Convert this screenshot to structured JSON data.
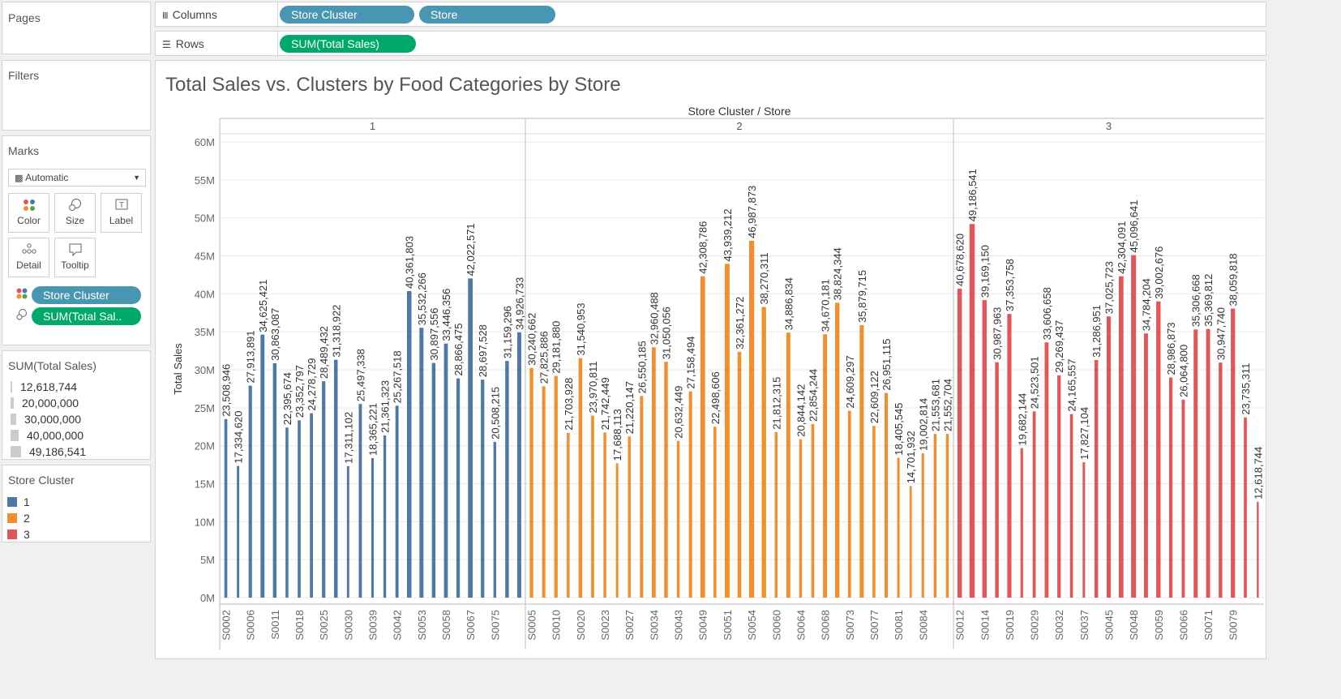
{
  "shelves": {
    "pages_label": "Pages",
    "columns_label": "Columns",
    "rows_label": "Rows",
    "columns_pills": [
      "Store Cluster",
      "Store"
    ],
    "rows_pills": [
      "SUM(Total Sales)"
    ]
  },
  "filters": {
    "label": "Filters"
  },
  "marks": {
    "label": "Marks",
    "type": "Automatic",
    "buttons": [
      "Color",
      "Size",
      "Label",
      "Detail",
      "Tooltip"
    ],
    "pills": [
      "Store Cluster",
      "SUM(Total Sal.."
    ]
  },
  "size_legend": {
    "title": "SUM(Total Sales)",
    "items": [
      "12,618,744",
      "20,000,000",
      "30,000,000",
      "40,000,000",
      "49,186,541"
    ]
  },
  "color_legend": {
    "title": "Store Cluster",
    "items": [
      {
        "label": "1",
        "color": "#4e79a7"
      },
      {
        "label": "2",
        "color": "#f28e2b"
      },
      {
        "label": "3",
        "color": "#e15759"
      }
    ]
  },
  "colors": {
    "cluster1": "#4e79a7",
    "cluster2": "#f28e2b",
    "cluster3": "#e15759",
    "pill_blue": "#4996b2",
    "pill_green": "#00a86b"
  },
  "chart_data": {
    "type": "bar",
    "title": "Total Sales vs. Clusters by Food Categories by Store",
    "header": "Store Cluster / Store",
    "ylabel": "Total Sales",
    "ylim": [
      0,
      60000000
    ],
    "yticks": [
      "0M",
      "5M",
      "10M",
      "15M",
      "20M",
      "25M",
      "30M",
      "35M",
      "40M",
      "45M",
      "50M",
      "55M",
      "60M"
    ],
    "grid": true,
    "series": [
      {
        "name": "1",
        "bars": [
          23508946,
          17334620,
          27913891,
          34625421,
          30863087,
          22395674,
          23352797,
          24278729,
          28489432,
          31318922,
          17311102,
          25497338,
          18365221,
          21361323,
          25267518,
          40361803,
          35532266,
          30897556,
          33446356,
          28866475,
          42022571,
          28697528,
          20508215,
          31159296,
          34926733
        ],
        "tick_labels": [
          "S0002",
          "S0006",
          "S0011",
          "S0018",
          "S0025",
          "S0030",
          "S0039",
          "S0042",
          "S0053",
          "S0058",
          "S0067",
          "S0075"
        ],
        "value_labels": [
          "23,508,946",
          "17,334,620",
          "27,913,891",
          "34,625,421",
          "30,863,087",
          "22,395,674",
          "23,352,797",
          "24,278,729",
          "28,489,432",
          "31,318,922",
          "17,311,102",
          "25,497,338",
          "18,365,221",
          "21,361,323",
          "25,267,518",
          "40,361,803",
          "35,532,266",
          "30,897,556",
          "33,446,356",
          "28,866,475",
          "42,022,571",
          "28,697,528",
          "20,508,215",
          "31,159,296",
          "34,926,733"
        ]
      },
      {
        "name": "2",
        "bars": [
          30240662,
          27825886,
          29181880,
          21703928,
          31540953,
          23970811,
          21742449,
          17688113,
          21220147,
          26550185,
          32960488,
          31050056,
          20632449,
          27158494,
          42308786,
          22498606,
          43939212,
          32361272,
          46987873,
          38270311,
          21812315,
          34886834,
          20844142,
          22854244,
          34670181,
          38824344,
          24609297,
          35879715,
          22609122,
          26951115,
          18405545,
          14701932,
          19002814,
          21553681,
          21552704
        ],
        "tick_labels": [
          "S0005",
          "S0010",
          "S0020",
          "S0023",
          "S0027",
          "S0034",
          "S0043",
          "S0049",
          "S0051",
          "S0054",
          "S0060",
          "S0064",
          "S0068",
          "S0073",
          "S0077",
          "S0081",
          "S0084"
        ],
        "value_labels": [
          "30,240,662",
          "27,825,886",
          "29,181,880",
          "21,703,928",
          "31,540,953",
          "23,970,811",
          "21,742,449",
          "17,688,113",
          "21,220,147",
          "26,550,185",
          "32,960,488",
          "31,050,056",
          "20,632,449",
          "27,158,494",
          "42,308,786",
          "22,498,606",
          "43,939,212",
          "32,361,272",
          "46,987,873",
          "38,270,311",
          "21,812,315",
          "34,886,834",
          "20,844,142",
          "22,854,244",
          "34,670,181",
          "38,824,344",
          "24,609,297",
          "35,879,715",
          "22,609,122",
          "26,951,115",
          "18,405,545",
          "14,701,932",
          "19,002,814",
          "21,553,681",
          "21,552,704"
        ]
      },
      {
        "name": "3",
        "bars": [
          40678620,
          49186541,
          39169150,
          30987963,
          37353758,
          19682144,
          24523501,
          33606658,
          29269437,
          24165557,
          17827104,
          31286951,
          37025723,
          42304091,
          45096641,
          34784204,
          39002676,
          28986873,
          26064800,
          35306668,
          35369812,
          30947740,
          38059818,
          23735311,
          12618744
        ],
        "tick_labels": [
          "S0012",
          "S0014",
          "S0019",
          "S0029",
          "S0032",
          "S0037",
          "S0045",
          "S0048",
          "S0059",
          "S0066",
          "S0071",
          "S0079"
        ],
        "value_labels": [
          "40,678,620",
          "49,186,541",
          "39,169,150",
          "30,987,963",
          "37,353,758",
          "19,682,144",
          "24,523,501",
          "33,606,658",
          "29,269,437",
          "24,165,557",
          "17,827,104",
          "31,286,951",
          "37,025,723",
          "42,304,091",
          "45,096,641",
          "34,784,204",
          "39,002,676",
          "28,986,873",
          "26,064,800",
          "35,306,668",
          "35,369,812",
          "30,947,740",
          "38,059,818",
          "23,735,311",
          "12,618,744"
        ]
      }
    ]
  }
}
